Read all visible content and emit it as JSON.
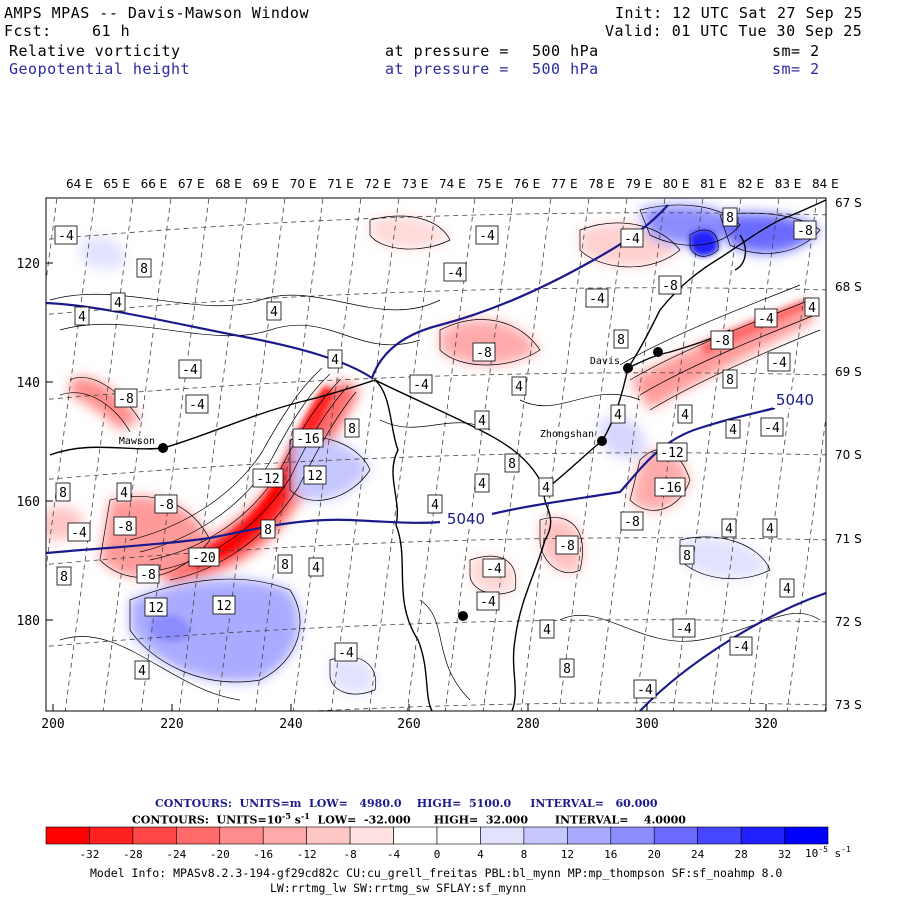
{
  "header": {
    "title": "AMPS MPAS -- Davis-Mawson Window",
    "fcst_label": "Fcst:",
    "fcst_value": "61 h",
    "init": "Init: 12 UTC Sat 27 Sep 25",
    "valid": "Valid: 01 UTC Tue 30 Sep 25",
    "field1": "Relative vorticity",
    "field2": "Geopotential height",
    "at_pressure": "at pressure =",
    "pressure": "500 hPa",
    "sm": "sm= 2"
  },
  "axes": {
    "lon_top": [
      "64 E",
      "65 E",
      "66 E",
      "67 E",
      "68 E",
      "69 E",
      "70 E",
      "71 E",
      "72 E",
      "73 E",
      "74 E",
      "75 E",
      "76 E",
      "77 E",
      "78 E",
      "79 E",
      "80 E",
      "81 E",
      "82 E",
      "83 E",
      "84 E"
    ],
    "lat_right": [
      "67 S",
      "68 S",
      "69 S",
      "70 S",
      "71 S",
      "72 S",
      "73 S"
    ],
    "x_ticks": [
      "200",
      "220",
      "240",
      "260",
      "280",
      "300",
      "320"
    ],
    "y_ticks": [
      "120",
      "140",
      "160",
      "180"
    ]
  },
  "places": [
    {
      "name": "Mawson",
      "dot": [
        163,
        448
      ]
    },
    {
      "name": "Davis",
      "dot": [
        628,
        368
      ]
    },
    {
      "name": "Zhongshan",
      "dot": [
        602,
        441
      ]
    },
    {
      "name": "",
      "dot": [
        658,
        352
      ]
    },
    {
      "name": "",
      "dot": [
        463,
        616
      ]
    }
  ],
  "contour_labels": [
    {
      "t": "-4",
      "p": [
        66,
        235
      ]
    },
    {
      "t": "8",
      "p": [
        144,
        268
      ]
    },
    {
      "t": "4",
      "p": [
        118,
        302
      ]
    },
    {
      "t": "4",
      "p": [
        82,
        316
      ]
    },
    {
      "t": "4",
      "p": [
        274,
        311
      ]
    },
    {
      "t": "-4",
      "p": [
        190,
        369
      ]
    },
    {
      "t": "4",
      "p": [
        335,
        359
      ]
    },
    {
      "t": "-4",
      "p": [
        197,
        404
      ]
    },
    {
      "t": "-8",
      "p": [
        126,
        398
      ]
    },
    {
      "t": "-8",
      "p": [
        484,
        352
      ]
    },
    {
      "t": "-4",
      "p": [
        421,
        384
      ]
    },
    {
      "t": "4",
      "p": [
        519,
        386
      ]
    },
    {
      "t": "4",
      "p": [
        482,
        420
      ]
    },
    {
      "t": "4",
      "p": [
        482,
        483
      ]
    },
    {
      "t": "8",
      "p": [
        512,
        463
      ]
    },
    {
      "t": "4",
      "p": [
        435,
        504
      ]
    },
    {
      "t": "8",
      "p": [
        352,
        428
      ]
    },
    {
      "t": "-16",
      "p": [
        308,
        438
      ]
    },
    {
      "t": "12",
      "p": [
        315,
        475
      ]
    },
    {
      "t": "-12",
      "p": [
        268,
        478
      ]
    },
    {
      "t": "-8",
      "p": [
        166,
        504
      ]
    },
    {
      "t": "4",
      "p": [
        124,
        492
      ]
    },
    {
      "t": "8",
      "p": [
        63,
        492
      ]
    },
    {
      "t": "-4",
      "p": [
        79,
        532
      ]
    },
    {
      "t": "-8",
      "p": [
        125,
        526
      ]
    },
    {
      "t": "8",
      "p": [
        268,
        529
      ]
    },
    {
      "t": "8",
      "p": [
        285,
        564
      ]
    },
    {
      "t": "-20",
      "p": [
        204,
        557
      ]
    },
    {
      "t": "-8",
      "p": [
        148,
        574
      ]
    },
    {
      "t": "8",
      "p": [
        64,
        576
      ]
    },
    {
      "t": "4",
      "p": [
        316,
        567
      ]
    },
    {
      "t": "12",
      "p": [
        156,
        607
      ]
    },
    {
      "t": "12",
      "p": [
        224,
        605
      ]
    },
    {
      "t": "4",
      "p": [
        142,
        670
      ]
    },
    {
      "t": "-4",
      "p": [
        346,
        652
      ]
    },
    {
      "t": "-4",
      "p": [
        488,
        601
      ]
    },
    {
      "t": "-4",
      "p": [
        494,
        568
      ]
    },
    {
      "t": "4",
      "p": [
        547,
        629
      ]
    },
    {
      "t": "8",
      "p": [
        567,
        668
      ]
    },
    {
      "t": "-8",
      "p": [
        567,
        545
      ]
    },
    {
      "t": "-8",
      "p": [
        632,
        521
      ]
    },
    {
      "t": "8",
      "p": [
        687,
        555
      ]
    },
    {
      "t": "4",
      "p": [
        729,
        528
      ]
    },
    {
      "t": "4",
      "p": [
        770,
        528
      ]
    },
    {
      "t": "4",
      "p": [
        787,
        588
      ]
    },
    {
      "t": "-4",
      "p": [
        684,
        628
      ]
    },
    {
      "t": "-4",
      "p": [
        741,
        646
      ]
    },
    {
      "t": "-4",
      "p": [
        645,
        689
      ]
    },
    {
      "t": "-12",
      "p": [
        672,
        452
      ]
    },
    {
      "t": "-16",
      "p": [
        670,
        487
      ]
    },
    {
      "t": "4",
      "p": [
        685,
        414
      ]
    },
    {
      "t": "8",
      "p": [
        730,
        379
      ]
    },
    {
      "t": "4",
      "p": [
        733,
        429
      ]
    },
    {
      "t": "-4",
      "p": [
        772,
        427
      ]
    },
    {
      "t": "-8",
      "p": [
        722,
        340
      ]
    },
    {
      "t": "-4",
      "p": [
        779,
        362
      ]
    },
    {
      "t": "-4",
      "p": [
        766,
        318
      ]
    },
    {
      "t": "4",
      "p": [
        812,
        307
      ]
    },
    {
      "t": "-8",
      "p": [
        805,
        230
      ]
    },
    {
      "t": "8",
      "p": [
        730,
        217
      ]
    },
    {
      "t": "-4",
      "p": [
        632,
        238
      ]
    },
    {
      "t": "-8",
      "p": [
        670,
        285
      ]
    },
    {
      "t": "-4",
      "p": [
        597,
        298
      ]
    },
    {
      "t": "8",
      "p": [
        621,
        339
      ]
    },
    {
      "t": "-4",
      "p": [
        455,
        272
      ]
    },
    {
      "t": "-4",
      "p": [
        487,
        235
      ]
    },
    {
      "t": "4",
      "p": [
        618,
        414
      ]
    },
    {
      "t": "4",
      "p": [
        546,
        487
      ]
    }
  ],
  "height_labels": [
    {
      "t": "5040",
      "p": [
        466,
        519
      ]
    },
    {
      "t": "5040",
      "p": [
        795,
        400
      ]
    }
  ],
  "colorbar": {
    "line1_a": "CONTOURS:  UNITS=m  LOW=   4980.0",
    "line1_b": "HIGH=  5100.0",
    "line1_c": "INTERVAL=   60.000",
    "line2_a": "CONTOURS:  UNITS=10",
    "line2_b": "-5",
    "line2_c": " s",
    "line2_d": "-1",
    "line2_e": "  LOW=  -32.000",
    "line2_f": "HIGH=  32.000",
    "line2_g": "INTERVAL=    4.0000",
    "ticks": [
      "-32",
      "-28",
      "-24",
      "-20",
      "-16",
      "-12",
      "-8",
      "-4",
      "0",
      "4",
      "8",
      "12",
      "16",
      "20",
      "24",
      "28",
      "32"
    ],
    "units_a": "10",
    "units_b": "-5",
    "units_c": " s",
    "units_d": "-1",
    "colors": [
      "#ff0000",
      "#ff2020",
      "#ff4646",
      "#ff6a6a",
      "#ff8c8c",
      "#ffaaaa",
      "#ffc6c6",
      "#ffe2e2",
      "#ffffff",
      "#ffffff",
      "#e2e2ff",
      "#c6c6ff",
      "#aaaaff",
      "#8c8cff",
      "#6a6aff",
      "#4646ff",
      "#2020ff",
      "#0000ff"
    ]
  },
  "model_info_1": "Model Info: MPASv8.2.3-194-gf29cd82c CU:cu_grell_freitas PBL:bl_mynn MP:mp_thompson SF:sf_noahmp 8.0",
  "model_info_2": "LW:rrtmg_lw SW:rrtmg_sw SFLAY:sf_mynn"
}
